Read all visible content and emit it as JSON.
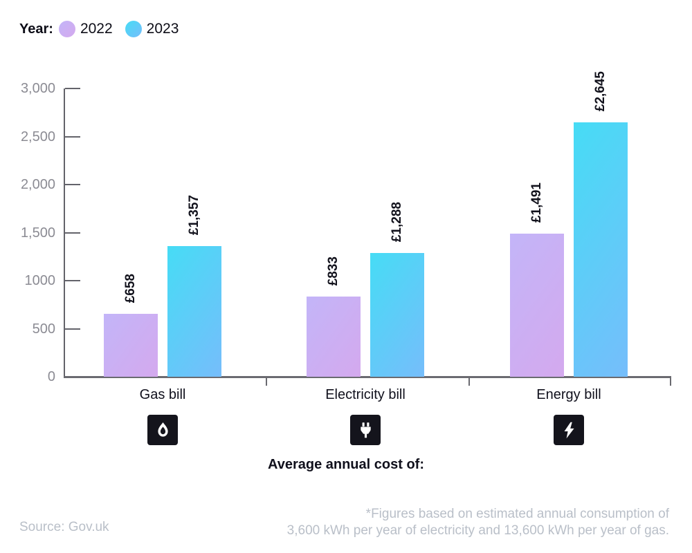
{
  "legend": {
    "title": "Year:",
    "items": [
      {
        "label": "2022"
      },
      {
        "label": "2023"
      }
    ]
  },
  "chart_data": {
    "type": "bar",
    "categories": [
      "Gas bill",
      "Electricity bill",
      "Energy bill"
    ],
    "category_icons": [
      "flame-icon",
      "plug-icon",
      "bolt-icon"
    ],
    "series": [
      {
        "name": "2022",
        "values": [
          658,
          833,
          1491
        ],
        "labels": [
          "£658",
          "£833",
          "£1,491"
        ]
      },
      {
        "name": "2023",
        "values": [
          1357,
          1288,
          2645
        ],
        "labels": [
          "£1,357",
          "£1,288",
          "£2,645"
        ]
      }
    ],
    "ylim": [
      0,
      3000
    ],
    "ytick_values": [
      0,
      500,
      1000,
      1500,
      2000,
      2500,
      3000
    ],
    "ytick_labels": [
      "0",
      "500",
      "1000",
      "1,500",
      "2,000",
      "2,500",
      "3,000"
    ],
    "xlabel": "Average annual cost of:",
    "grid": false,
    "legend_position": "top-left"
  },
  "colors": {
    "bar_2022_start": "#c3b5f8",
    "bar_2022_end": "#d4a9ee",
    "bar_2023_start": "#46dcf5",
    "bar_2023_end": "#76bdfb",
    "axis_line": "#63636a",
    "baseline": "#6a6a70",
    "tick_label": "#8b8b93",
    "icon_background": "#14141c",
    "icon_glyph": "#ffffff",
    "footer_text": "#b9bfc8"
  },
  "footer": {
    "source": "Source: Gov.uk",
    "note_line1": "*Figures based on estimated annual consumption of",
    "note_line2": "3,600 kWh per year of electricity and 13,600 kWh per year of gas."
  }
}
